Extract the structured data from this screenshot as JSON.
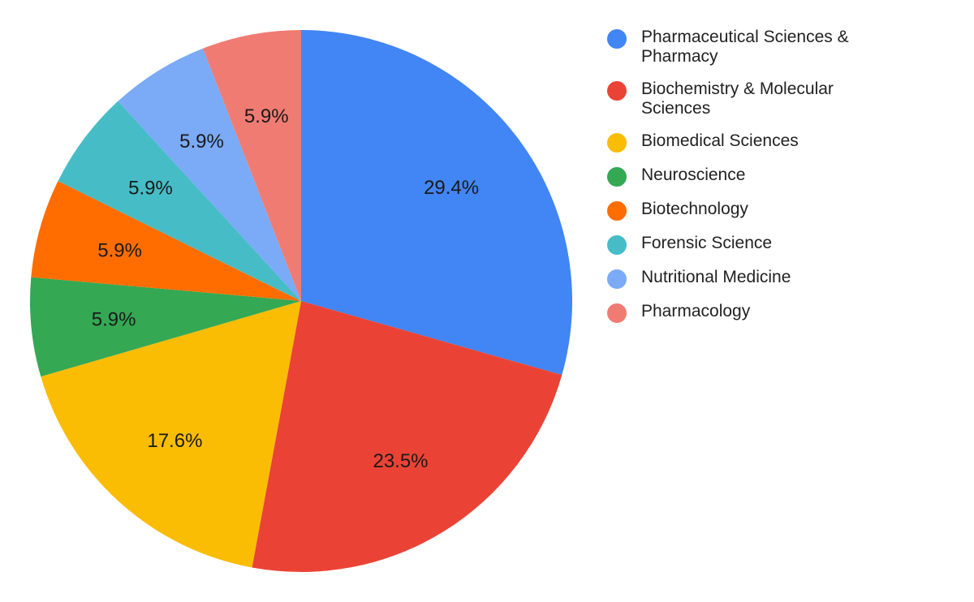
{
  "chart_data": {
    "type": "pie",
    "title": "",
    "legend_position": "right",
    "start_angle_deg": 0,
    "direction": "clockwise",
    "slices": [
      {
        "label": "Pharmaceutical Sciences & Pharmacy",
        "value": 29.4,
        "display": "29.4%",
        "color": "#4285f4"
      },
      {
        "label": "Biochemistry & Molecular Sciences",
        "value": 23.5,
        "display": "23.5%",
        "color": "#ea4335"
      },
      {
        "label": "Biomedical Sciences",
        "value": 17.6,
        "display": "17.6%",
        "color": "#fbbc04"
      },
      {
        "label": "Neuroscience",
        "value": 5.9,
        "display": "5.9%",
        "color": "#34a853"
      },
      {
        "label": "Biotechnology",
        "value": 5.9,
        "display": "5.9%",
        "color": "#ff6d01"
      },
      {
        "label": "Forensic Science",
        "value": 5.9,
        "display": "5.9%",
        "color": "#46bdc6"
      },
      {
        "label": "Nutritional Medicine",
        "value": 5.9,
        "display": "5.9%",
        "color": "#7baaf7"
      },
      {
        "label": "Pharmacology",
        "value": 5.9,
        "display": "5.9%",
        "color": "#f07b72"
      }
    ]
  }
}
